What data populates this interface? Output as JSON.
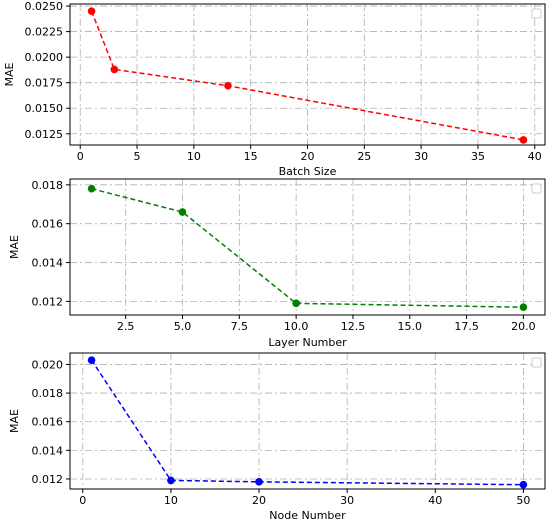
{
  "chart_data": [
    {
      "type": "line",
      "x": [
        1,
        3,
        13,
        39
      ],
      "xlabel": "Batch Size",
      "ylabel": "MAE",
      "xlim": [
        -0.9,
        40.9
      ],
      "ylim": [
        0.0114,
        0.0252
      ],
      "xticks": [
        0,
        5,
        10,
        15,
        20,
        25,
        30,
        35,
        40
      ],
      "yticks": [
        0.0125,
        0.015,
        0.0175,
        0.02,
        0.0225,
        0.025
      ],
      "xtick_labels": [
        "0",
        "5",
        "10",
        "15",
        "20",
        "25",
        "30",
        "35",
        "40"
      ],
      "ytick_labels": [
        "0.0125",
        "0.0150",
        "0.0175",
        "0.0200",
        "0.0225",
        "0.0250"
      ],
      "grid": true,
      "legend": "top-right (empty)",
      "series": [
        {
          "color": "#ff0000",
          "linestyle": "dashed",
          "marker": "circle",
          "values": [
            0.0245,
            0.0188,
            0.0172,
            0.0119
          ]
        }
      ]
    },
    {
      "type": "line",
      "x": [
        1,
        5,
        10,
        20
      ],
      "xlabel": "Layer Number",
      "ylabel": "MAE",
      "xlim": [
        0.05,
        20.95
      ],
      "ylim": [
        0.0113,
        0.0183
      ],
      "xticks": [
        2.5,
        5,
        7.5,
        10,
        12.5,
        15,
        17.5,
        20
      ],
      "yticks": [
        0.012,
        0.014,
        0.016,
        0.018
      ],
      "xtick_labels": [
        "2.5",
        "5.0",
        "7.5",
        "10.0",
        "12.5",
        "15.0",
        "17.5",
        "20.0"
      ],
      "ytick_labels": [
        "0.012",
        "0.014",
        "0.016",
        "0.018"
      ],
      "grid": true,
      "legend": "top-right (empty)",
      "series": [
        {
          "color": "#008000",
          "linestyle": "dashed",
          "marker": "circle",
          "values": [
            0.0178,
            0.0166,
            0.0119,
            0.0117
          ]
        }
      ]
    },
    {
      "type": "line",
      "x": [
        1,
        10,
        20,
        50
      ],
      "xlabel": "Node Number",
      "ylabel": "MAE",
      "xlim": [
        -1.45,
        52.45
      ],
      "ylim": [
        0.0113,
        0.0208
      ],
      "xticks": [
        0,
        10,
        20,
        30,
        40,
        50
      ],
      "yticks": [
        0.012,
        0.014,
        0.016,
        0.018,
        0.02
      ],
      "xtick_labels": [
        "0",
        "10",
        "20",
        "30",
        "40",
        "50"
      ],
      "ytick_labels": [
        "0.012",
        "0.014",
        "0.016",
        "0.018",
        "0.020"
      ],
      "grid": true,
      "legend": "top-right (empty)",
      "series": [
        {
          "color": "#0000ff",
          "linestyle": "dashed",
          "marker": "circle",
          "values": [
            0.0203,
            0.0119,
            0.0118,
            0.0116
          ]
        }
      ]
    }
  ]
}
